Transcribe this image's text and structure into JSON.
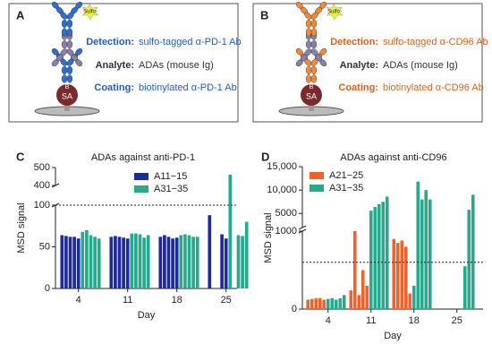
{
  "panels": [
    {
      "letter": "A",
      "tag": "Sulfo-",
      "biotin": "B",
      "streptavidin": "SA",
      "rows": [
        {
          "label": "Detection:",
          "text": "sulfo-tagged α-PD-1 Ab"
        },
        {
          "label": "Analyte:",
          "text": "ADAs (mouse Ig)"
        },
        {
          "label": "Coating:",
          "text": "biotinylated α-PD-1 Ab"
        }
      ]
    },
    {
      "letter": "B",
      "tag": "Sulfo-",
      "biotin": "B",
      "streptavidin": "SA",
      "rows": [
        {
          "label": "Detection:",
          "text": "sulfo-tagged α-CD96 Ab"
        },
        {
          "label": "Analyte:",
          "text": "ADAs (mouse Ig)"
        },
        {
          "label": "Coating:",
          "text": "biotinylated α-CD96 Ab"
        }
      ]
    }
  ],
  "chart_data": [
    {
      "type": "bar",
      "panel_label": "C",
      "title": "ADAs against anti-PD-1",
      "ylabel": "MSD signal",
      "xlabel": "Day",
      "categories": [
        null,
        null,
        null,
        null,
        "4",
        null,
        null,
        null,
        null,
        null,
        null,
        null,
        null,
        null,
        "11",
        null,
        null,
        null,
        null,
        null,
        null,
        null,
        null,
        null,
        "18",
        null,
        null,
        null,
        null,
        null,
        null,
        null,
        null,
        null,
        "25",
        null,
        null,
        null,
        null,
        null
      ],
      "series": [
        {
          "name": "A11−15",
          "color": "#1c2a9c",
          "values": [
            64,
            63,
            62,
            62,
            60,
            null,
            null,
            null,
            null,
            null,
            62,
            63,
            62,
            61,
            60,
            null,
            null,
            null,
            null,
            null,
            62,
            64,
            62,
            60,
            61,
            null,
            null,
            null,
            null,
            null,
            88,
            null,
            null,
            65,
            60,
            null,
            null,
            null,
            null,
            null
          ]
        },
        {
          "name": "A31−35",
          "color": "#27a98c",
          "values": [
            null,
            null,
            null,
            null,
            null,
            68,
            70,
            64,
            62,
            60,
            null,
            null,
            null,
            null,
            null,
            66,
            66,
            65,
            61,
            64,
            null,
            null,
            null,
            null,
            null,
            64,
            65,
            64,
            62,
            62,
            null,
            null,
            null,
            null,
            null,
            460,
            null,
            64,
            63,
            80
          ]
        }
      ],
      "ylim": [
        0,
        500
      ],
      "ybreak": [
        100,
        400
      ],
      "yticks": [
        0,
        50,
        100,
        400,
        500
      ],
      "threshold": 100,
      "legend": "upper right"
    },
    {
      "type": "bar",
      "panel_label": "D",
      "title": "ADAs against anti-CD96",
      "ylabel": "MSD signal",
      "xlabel": "Day",
      "categories": [
        null,
        null,
        null,
        null,
        null,
        "4",
        null,
        null,
        null,
        null,
        null,
        null,
        null,
        null,
        null,
        "11",
        null,
        null,
        null,
        null,
        null,
        null,
        null,
        null,
        null,
        "18",
        null,
        null,
        null,
        null,
        null,
        null,
        null,
        null,
        null,
        "25",
        null,
        null,
        null,
        null
      ],
      "series": [
        {
          "name": "A21−25",
          "color": "#f0622a",
          "values": [
            120,
            130,
            140,
            140,
            120,
            null,
            null,
            null,
            null,
            null,
            240,
            1000,
            180,
            500,
            300,
            null,
            null,
            null,
            null,
            null,
            900,
            850,
            880,
            800,
            200,
            null,
            null,
            null,
            null,
            null,
            null,
            null,
            null,
            null,
            null,
            null,
            null,
            null,
            null,
            null
          ]
        },
        {
          "name": "A31−35",
          "color": "#27a98c",
          "values": [
            null,
            null,
            null,
            null,
            null,
            130,
            140,
            120,
            140,
            180,
            null,
            null,
            null,
            null,
            null,
            5600,
            6400,
            7000,
            7500,
            8600,
            null,
            null,
            null,
            null,
            null,
            300,
            11800,
            8000,
            10000,
            8000,
            null,
            null,
            null,
            null,
            null,
            null,
            null,
            550,
            5800,
            9000
          ]
        }
      ],
      "ylim": [
        0,
        15000
      ],
      "ybreak": [
        1000,
        2000
      ],
      "yticks": [
        0,
        1000,
        5000,
        {
          "value": 10000,
          "label": "10,000"
        },
        {
          "value": 15000,
          "label": "15,000"
        }
      ],
      "threshold": 600,
      "legend": "upper left"
    }
  ]
}
